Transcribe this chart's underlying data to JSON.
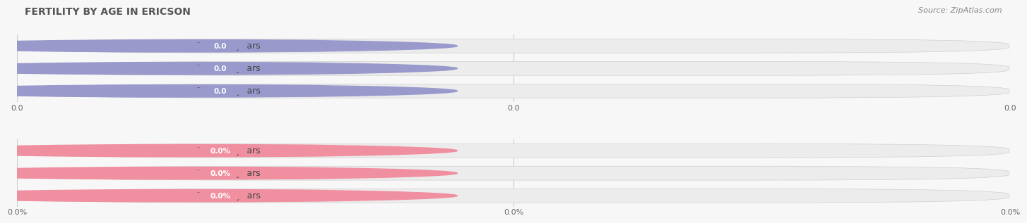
{
  "title": "FERTILITY BY AGE IN ERICSON",
  "source": "Source: ZipAtlas.com",
  "top_section": {
    "categories": [
      "15 to 19 years",
      "20 to 34 years",
      "35 to 50 years"
    ],
    "values": [
      0.0,
      0.0,
      0.0
    ],
    "bar_color": "#9999cc",
    "circle_color": "#9999cc",
    "x_tick_labels": [
      "0.0",
      "0.0",
      "0.0"
    ]
  },
  "bottom_section": {
    "categories": [
      "15 to 19 years",
      "20 to 34 years",
      "35 to 50 years"
    ],
    "values": [
      0.0,
      0.0,
      0.0
    ],
    "bar_color": "#f08fa0",
    "circle_color": "#f08fa0",
    "x_tick_labels": [
      "0.0%",
      "0.0%",
      "0.0%"
    ]
  },
  "bg_color": "#f7f7f7",
  "bar_bg_color": "#e8e8e8",
  "title_fontsize": 10,
  "source_fontsize": 8,
  "label_fontsize": 9,
  "value_fontsize": 7.5,
  "tick_fontsize": 8
}
